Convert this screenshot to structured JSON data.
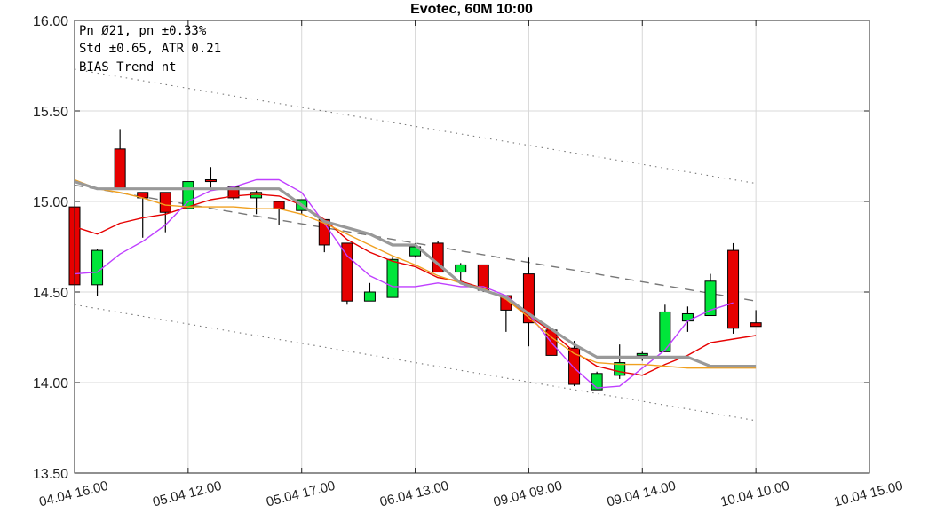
{
  "chart_data": {
    "type": "candlestick",
    "title": "Evotec, 60M 10:00",
    "xlabel": "",
    "ylabel": "",
    "ylim": [
      13.5,
      16.0
    ],
    "xlim": [
      0,
      35
    ],
    "grid": true,
    "y_ticks": [
      16.0,
      15.5,
      15.0,
      14.5,
      14.0,
      13.5
    ],
    "y_tick_labels": [
      "16.00",
      "15.50",
      "15.00",
      "14.50",
      "14.00",
      "13.50"
    ],
    "x_ticks": [
      {
        "x": 0,
        "label": "04.04 16.00"
      },
      {
        "x": 5,
        "label": "05.04 12.00"
      },
      {
        "x": 10,
        "label": "05.04 17.00"
      },
      {
        "x": 15,
        "label": "06.04 13.00"
      },
      {
        "x": 20,
        "label": "09.04 09.00"
      },
      {
        "x": 25,
        "label": "09.04 14.00"
      },
      {
        "x": 30,
        "label": "10.04 10.00"
      },
      {
        "x": 35,
        "label": "10.04 15.00"
      }
    ],
    "info_lines": [
      "Pn  Ø21, pn ±0.33%",
      "Std ±0.65, ATR 0.21",
      "BIAS Trend nt"
    ],
    "candles": [
      {
        "x": 0,
        "open": 14.97,
        "high": 14.97,
        "low": 14.54,
        "close": 14.54
      },
      {
        "x": 1,
        "open": 14.54,
        "high": 14.74,
        "low": 14.48,
        "close": 14.73
      },
      {
        "x": 2,
        "open": 15.29,
        "high": 15.4,
        "low": 15.07,
        "close": 15.07
      },
      {
        "x": 3,
        "open": 15.05,
        "high": 15.05,
        "low": 14.8,
        "close": 15.02
      },
      {
        "x": 4,
        "open": 15.05,
        "high": 15.05,
        "low": 14.83,
        "close": 14.94
      },
      {
        "x": 5,
        "open": 14.96,
        "high": 15.11,
        "low": 14.96,
        "close": 15.11
      },
      {
        "x": 6,
        "open": 15.12,
        "high": 15.19,
        "low": 15.06,
        "close": 15.11
      },
      {
        "x": 7,
        "open": 15.08,
        "high": 15.08,
        "low": 15.01,
        "close": 15.02
      },
      {
        "x": 8,
        "open": 15.02,
        "high": 15.06,
        "low": 14.93,
        "close": 15.05
      },
      {
        "x": 9,
        "open": 15.0,
        "high": 15.0,
        "low": 14.87,
        "close": 14.96
      },
      {
        "x": 10,
        "open": 14.95,
        "high": 15.01,
        "low": 14.93,
        "close": 15.01
      },
      {
        "x": 11,
        "open": 14.9,
        "high": 14.9,
        "low": 14.72,
        "close": 14.76
      },
      {
        "x": 12,
        "open": 14.77,
        "high": 14.77,
        "low": 14.43,
        "close": 14.45
      },
      {
        "x": 13,
        "open": 14.45,
        "high": 14.55,
        "low": 14.45,
        "close": 14.5
      },
      {
        "x": 14,
        "open": 14.47,
        "high": 14.69,
        "low": 14.47,
        "close": 14.68
      },
      {
        "x": 15,
        "open": 14.7,
        "high": 14.77,
        "low": 14.69,
        "close": 14.75
      },
      {
        "x": 16,
        "open": 14.77,
        "high": 14.78,
        "low": 14.61,
        "close": 14.61
      },
      {
        "x": 17,
        "open": 14.61,
        "high": 14.66,
        "low": 14.55,
        "close": 14.65
      },
      {
        "x": 18,
        "open": 14.65,
        "high": 14.65,
        "low": 14.5,
        "close": 14.51
      },
      {
        "x": 19,
        "open": 14.48,
        "high": 14.48,
        "low": 14.28,
        "close": 14.4
      },
      {
        "x": 20,
        "open": 14.6,
        "high": 14.69,
        "low": 14.2,
        "close": 14.33
      },
      {
        "x": 21,
        "open": 14.29,
        "high": 14.3,
        "low": 14.15,
        "close": 14.15
      },
      {
        "x": 22,
        "open": 14.19,
        "high": 14.23,
        "low": 13.98,
        "close": 13.99
      },
      {
        "x": 23,
        "open": 13.96,
        "high": 14.06,
        "low": 13.96,
        "close": 14.05
      },
      {
        "x": 24,
        "open": 14.04,
        "high": 14.21,
        "low": 14.02,
        "close": 14.11
      },
      {
        "x": 25,
        "open": 14.15,
        "high": 14.17,
        "low": 14.12,
        "close": 14.16
      },
      {
        "x": 26,
        "open": 14.17,
        "high": 14.43,
        "low": 14.17,
        "close": 14.39
      },
      {
        "x": 27,
        "open": 14.34,
        "high": 14.42,
        "low": 14.28,
        "close": 14.38
      },
      {
        "x": 28,
        "open": 14.37,
        "high": 14.6,
        "low": 14.37,
        "close": 14.56
      },
      {
        "x": 29,
        "open": 14.73,
        "high": 14.77,
        "low": 14.27,
        "close": 14.3
      },
      {
        "x": 30,
        "open": 14.33,
        "high": 14.4,
        "low": 14.31,
        "close": 14.31
      }
    ],
    "series": [
      {
        "type": "line",
        "color": "#e60000",
        "width": 1.4,
        "dash": "",
        "points": [
          [
            0,
            14.86
          ],
          [
            1,
            14.82
          ],
          [
            2,
            14.88
          ],
          [
            3,
            14.91
          ],
          [
            4,
            14.93
          ],
          [
            5,
            14.97
          ],
          [
            6,
            15.01
          ],
          [
            7,
            15.03
          ],
          [
            8,
            15.04
          ],
          [
            9,
            15.03
          ],
          [
            10,
            14.98
          ],
          [
            11,
            14.9
          ],
          [
            12,
            14.79
          ],
          [
            13,
            14.72
          ],
          [
            14,
            14.67
          ],
          [
            15,
            14.64
          ],
          [
            16,
            14.58
          ],
          [
            17,
            14.56
          ],
          [
            18,
            14.52
          ],
          [
            19,
            14.46
          ],
          [
            20,
            14.37
          ],
          [
            21,
            14.28
          ],
          [
            22,
            14.17
          ],
          [
            23,
            14.09
          ],
          [
            24,
            14.06
          ],
          [
            25,
            14.04
          ],
          [
            26,
            14.1
          ],
          [
            27,
            14.15
          ],
          [
            28,
            14.22
          ],
          [
            29,
            14.24
          ],
          [
            30,
            14.26
          ]
        ]
      },
      {
        "type": "line",
        "color": "#bf3fff",
        "width": 1.4,
        "dash": "",
        "points": [
          [
            0,
            14.6
          ],
          [
            1,
            14.61
          ],
          [
            2,
            14.71
          ],
          [
            3,
            14.78
          ],
          [
            4,
            14.87
          ],
          [
            5,
            15.0
          ],
          [
            6,
            15.06
          ],
          [
            7,
            15.08
          ],
          [
            8,
            15.12
          ],
          [
            9,
            15.12
          ],
          [
            10,
            15.05
          ],
          [
            11,
            14.88
          ],
          [
            12,
            14.7
          ],
          [
            13,
            14.59
          ],
          [
            14,
            14.53
          ],
          [
            15,
            14.53
          ],
          [
            16,
            14.55
          ],
          [
            17,
            14.53
          ],
          [
            18,
            14.53
          ],
          [
            19,
            14.48
          ],
          [
            20,
            14.38
          ],
          [
            21,
            14.22
          ],
          [
            22,
            14.08
          ],
          [
            23,
            13.97
          ],
          [
            24,
            13.98
          ],
          [
            25,
            14.08
          ],
          [
            26,
            14.18
          ],
          [
            27,
            14.34
          ],
          [
            28,
            14.4
          ],
          [
            29,
            14.44
          ]
        ]
      },
      {
        "type": "line",
        "color": "#f0a020",
        "width": 1.4,
        "dash": "",
        "points": [
          [
            0,
            15.12
          ],
          [
            1,
            15.07
          ],
          [
            2,
            15.05
          ],
          [
            3,
            15.02
          ],
          [
            4,
            14.98
          ],
          [
            5,
            14.97
          ],
          [
            6,
            14.97
          ],
          [
            7,
            14.97
          ],
          [
            8,
            14.96
          ],
          [
            9,
            14.96
          ],
          [
            10,
            14.93
          ],
          [
            11,
            14.88
          ],
          [
            12,
            14.82
          ],
          [
            13,
            14.76
          ],
          [
            14,
            14.7
          ],
          [
            15,
            14.65
          ],
          [
            16,
            14.59
          ],
          [
            17,
            14.55
          ],
          [
            18,
            14.52
          ],
          [
            19,
            14.46
          ],
          [
            20,
            14.36
          ],
          [
            21,
            14.25
          ],
          [
            22,
            14.16
          ],
          [
            23,
            14.11
          ],
          [
            24,
            14.1
          ],
          [
            25,
            14.1
          ],
          [
            26,
            14.09
          ],
          [
            27,
            14.08
          ],
          [
            28,
            14.08
          ],
          [
            29,
            14.08
          ],
          [
            30,
            14.08
          ]
        ]
      },
      {
        "type": "line",
        "color": "#999999",
        "width": 3.2,
        "dash": "",
        "points": [
          [
            0,
            15.11
          ],
          [
            1,
            15.07
          ],
          [
            9,
            15.07
          ],
          [
            11,
            14.89
          ],
          [
            13,
            14.82
          ],
          [
            14,
            14.76
          ],
          [
            15,
            14.76
          ],
          [
            17,
            14.55
          ],
          [
            19,
            14.47
          ],
          [
            20,
            14.38
          ],
          [
            22,
            14.21
          ],
          [
            23,
            14.14
          ],
          [
            27,
            14.14
          ],
          [
            28,
            14.09
          ],
          [
            30,
            14.09
          ]
        ]
      },
      {
        "type": "line",
        "color": "#777777",
        "width": 1.4,
        "dash": "10 7",
        "points": [
          [
            0,
            15.09
          ],
          [
            30,
            14.45
          ]
        ]
      },
      {
        "type": "line",
        "color": "#777777",
        "width": 1.1,
        "dash": "1.5 5",
        "points": [
          [
            0,
            15.73
          ],
          [
            30,
            15.1
          ]
        ]
      },
      {
        "type": "line",
        "color": "#777777",
        "width": 1.1,
        "dash": "1.5 5",
        "points": [
          [
            0,
            14.43
          ],
          [
            30,
            13.79
          ]
        ]
      }
    ],
    "colors": {
      "up": "#00e63a",
      "down": "#e60000",
      "doji": "#000000",
      "grid": "#d8d8d8",
      "axis": "#222222"
    }
  }
}
